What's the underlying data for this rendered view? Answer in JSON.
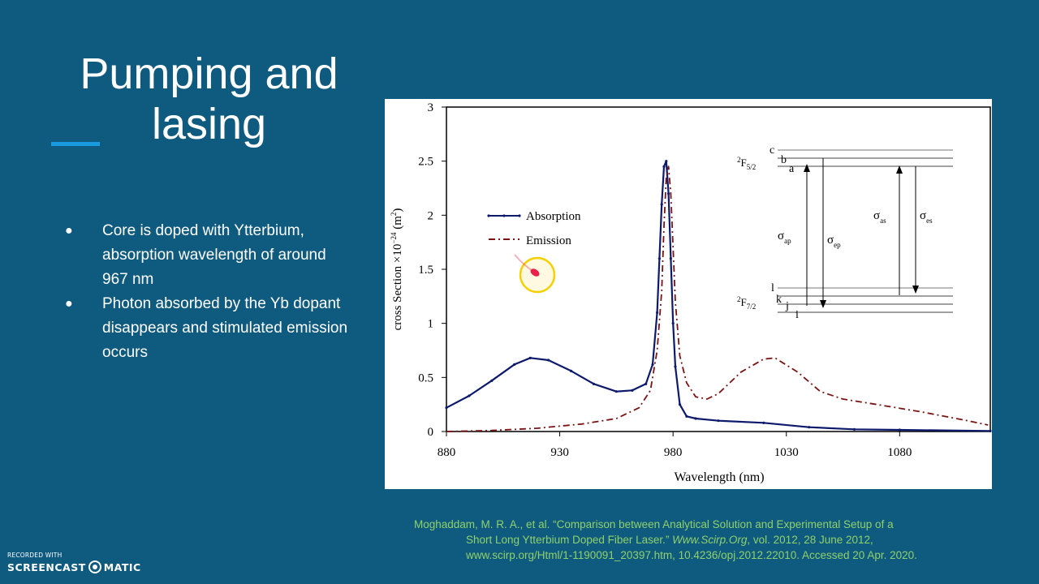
{
  "slide": {
    "title_line1": "Pumping and",
    "title_line2": "lasing",
    "bullets": [
      "Core is doped with Ytterbium, absorption wavelength of around 967 nm",
      "Photon absorbed by the Yb dopant disappears and stimulated emission occurs"
    ],
    "bullet_glyph": "●",
    "citation": {
      "line1": "Moghaddam, M. R. A., et al. “Comparison between Analytical Solution and Experimental Setup of a",
      "line2_pre": "Short Long Ytterbium Doped Fiber Laser.” ",
      "journal": "Www.Scirp.Org",
      "line2_post": ", vol. 2012, 28 June 2012, www.scirp.org/Html/1-1190091_20397.htm, 10.4236/opj.2012.22010. Accessed 20 Apr. 2020."
    },
    "colors": {
      "background": "#0f5a7f",
      "accent_bar": "#1a9be0",
      "citation": "#8fd16a",
      "cursor_highlight": "#f5d000",
      "cursor_pointer": "#e8204a"
    }
  },
  "watermark": {
    "small": "RECORDED WITH",
    "left": "SCREENCAST",
    "right": "MATIC"
  },
  "chart_data": {
    "type": "line",
    "xlabel": "Wavelength (nm)",
    "ylabel": "cross Section ×10",
    "ylabel_sup": "−24",
    "ylabel_unit": " (m",
    "ylabel_unit_sup": "2",
    "ylabel_close": ")",
    "xlim": [
      880,
      1120
    ],
    "ylim": [
      0,
      3
    ],
    "xticks": [
      880,
      930,
      980,
      1030,
      1080
    ],
    "yticks": [
      0,
      0.5,
      1,
      1.5,
      2,
      2.5,
      3
    ],
    "ytick_labels": [
      "0",
      "0.5",
      "1",
      "1.5",
      "2",
      "2.5",
      "3"
    ],
    "legend_position": "upper-left-center",
    "series": [
      {
        "name": "Absorption",
        "color": "#0d1a6b",
        "style": "solid-markers",
        "points": [
          [
            880,
            0.22
          ],
          [
            890,
            0.33
          ],
          [
            900,
            0.47
          ],
          [
            910,
            0.62
          ],
          [
            917,
            0.68
          ],
          [
            925,
            0.66
          ],
          [
            935,
            0.56
          ],
          [
            945,
            0.44
          ],
          [
            955,
            0.37
          ],
          [
            962,
            0.38
          ],
          [
            968,
            0.44
          ],
          [
            971,
            0.62
          ],
          [
            973,
            1.1
          ],
          [
            974,
            1.6
          ],
          [
            975,
            2.1
          ],
          [
            976,
            2.45
          ],
          [
            977,
            2.5
          ],
          [
            978,
            2.2
          ],
          [
            979,
            1.6
          ],
          [
            980,
            1.0
          ],
          [
            981,
            0.6
          ],
          [
            983,
            0.25
          ],
          [
            986,
            0.14
          ],
          [
            990,
            0.12
          ],
          [
            1000,
            0.1
          ],
          [
            1020,
            0.08
          ],
          [
            1040,
            0.04
          ],
          [
            1060,
            0.02
          ],
          [
            1080,
            0.015
          ],
          [
            1120,
            0.005
          ]
        ]
      },
      {
        "name": "Emission",
        "color": "#7a1414",
        "style": "dash-dot",
        "points": [
          [
            880,
            0.0
          ],
          [
            900,
            0.01
          ],
          [
            920,
            0.03
          ],
          [
            940,
            0.07
          ],
          [
            955,
            0.12
          ],
          [
            965,
            0.22
          ],
          [
            970,
            0.38
          ],
          [
            973,
            0.75
          ],
          [
            975,
            1.3
          ],
          [
            976,
            1.9
          ],
          [
            977,
            2.35
          ],
          [
            978,
            2.45
          ],
          [
            979,
            2.2
          ],
          [
            980,
            1.7
          ],
          [
            981,
            1.2
          ],
          [
            983,
            0.7
          ],
          [
            986,
            0.45
          ],
          [
            990,
            0.32
          ],
          [
            995,
            0.3
          ],
          [
            1000,
            0.35
          ],
          [
            1010,
            0.55
          ],
          [
            1020,
            0.67
          ],
          [
            1025,
            0.68
          ],
          [
            1035,
            0.55
          ],
          [
            1045,
            0.37
          ],
          [
            1055,
            0.3
          ],
          [
            1070,
            0.25
          ],
          [
            1090,
            0.18
          ],
          [
            1110,
            0.1
          ],
          [
            1119,
            0.06
          ]
        ]
      }
    ],
    "energy_diagram": {
      "upper_manifold": "F",
      "upper_sup": "2",
      "upper_sub": "5/2",
      "lower_manifold": "F",
      "lower_sup": "2",
      "lower_sub": "7/2",
      "upper_levels": [
        "c",
        "b",
        "a"
      ],
      "lower_levels": [
        "l",
        "k",
        "j",
        "i"
      ],
      "transitions": [
        {
          "sym": "σ",
          "sub": "ap"
        },
        {
          "sym": "σ",
          "sub": "ep"
        },
        {
          "sym": "σ",
          "sub": "as"
        },
        {
          "sym": "σ",
          "sub": "es"
        }
      ]
    }
  }
}
